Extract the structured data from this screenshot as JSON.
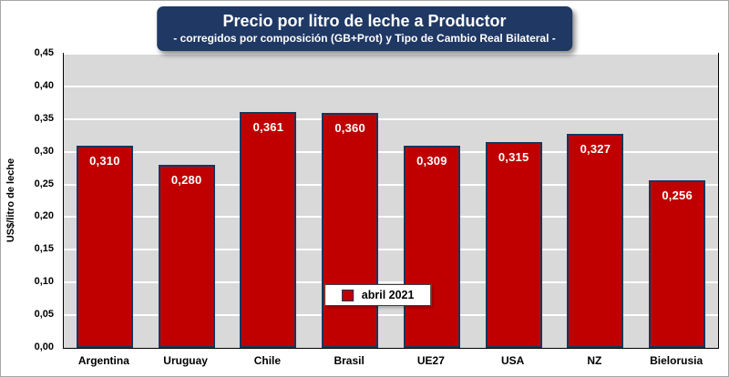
{
  "colors": {
    "bar_fill": "#C00000",
    "bar_border": "#17375E",
    "title_bg": "#1F3864",
    "plot_bg": "#D9D9D9",
    "gridline": "#FFFFFF"
  },
  "chart_data": {
    "type": "bar",
    "title": "Precio por litro de leche a Productor",
    "subtitle": "- corregidos por composición (GB+Prot) y Tipo de Cambio Real Bilateral -",
    "categories": [
      "Argentina",
      "Uruguay",
      "Chile",
      "Brasil",
      "UE27",
      "USA",
      "NZ",
      "Bielorusia"
    ],
    "values": [
      0.31,
      0.28,
      0.361,
      0.36,
      0.309,
      0.315,
      0.327,
      0.256
    ],
    "value_labels": [
      "0,310",
      "0,280",
      "0,361",
      "0,360",
      "0,309",
      "0,315",
      "0,327",
      "0,256"
    ],
    "xlabel": "",
    "ylabel": "US$/litro de leche",
    "ylim": [
      0,
      0.45
    ],
    "ytick_values": [
      0,
      0.05,
      0.1,
      0.15,
      0.2,
      0.25,
      0.3,
      0.35,
      0.4,
      0.45
    ],
    "ytick_labels": [
      "0,00",
      "0,05",
      "0,10",
      "0,15",
      "0,20",
      "0,25",
      "0,30",
      "0,35",
      "0,40",
      "0,45"
    ],
    "grid": true,
    "legend": {
      "label": "abril 2021",
      "position": "inside-bottom-center"
    }
  }
}
